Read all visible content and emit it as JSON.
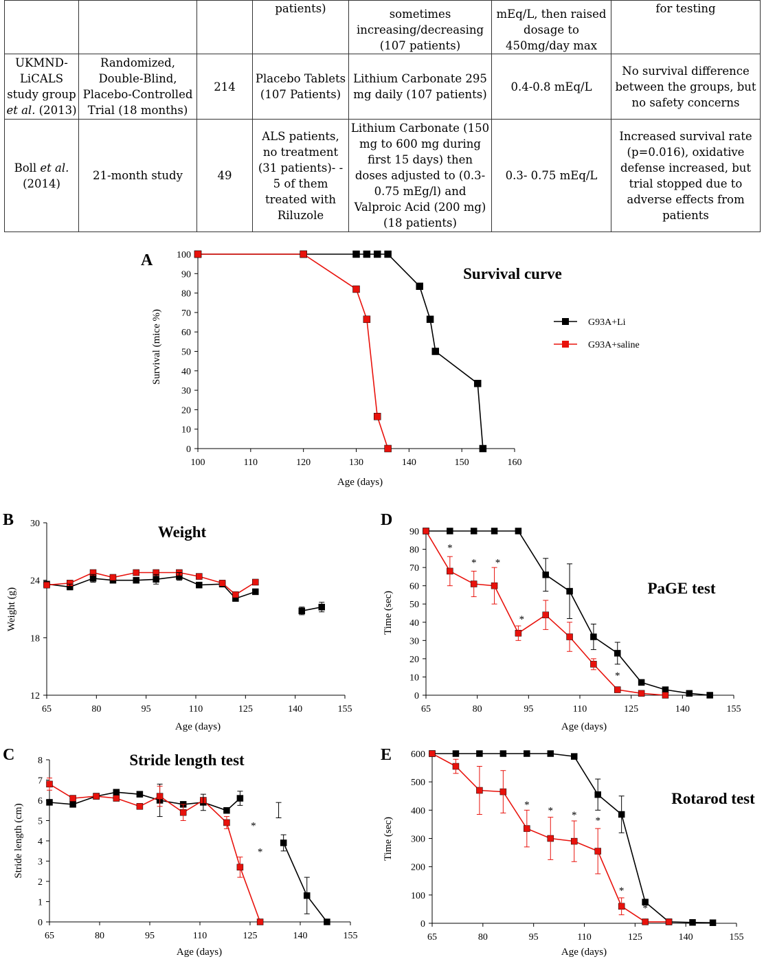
{
  "table": {
    "rows": [
      [
        "",
        "",
        "",
        "patients)",
        "sometimes increasing/decreasing (107 patients)",
        "mEq/L, then raised dosage to 450mg/day max",
        "for testing"
      ],
      [
        "UKMND-LiCALS study group et al. (2013)",
        "Randomized, Double-Blind, Placebo-Controlled Trial (18 months)",
        "214",
        "Placebo Tablets (107 Patients)",
        "Lithium Carbonate 295 mg daily (107 patients)",
        "0.4-0.8 mEq/L",
        "No survival difference between the groups, but no safety concerns"
      ],
      [
        "Boll et al. (2014)",
        "21-month study",
        "49",
        "ALS patients, no treatment (31 patients)- - 5 of them treated with Riluzole",
        "Lithium Carbonate (150 mg to 600 mg during first 15 days) then doses adjusted to (0.3-0.75 mEg/l) and Valproic Acid (200 mg) (18 patients)",
        "0.3- 0.75 mEq/L",
        "Increased survival rate (p=0.016), oxidative defense increased, but trial stopped due to adverse effects from patients"
      ]
    ],
    "cells": {
      "r1c0a": "UKMND-LiCALS study group",
      "r1c0b": "et al.",
      "r1c0c": " (2013)",
      "r2c0a": "Boll ",
      "r2c0b": "et al.",
      "r2c0c": "(2014)"
    }
  },
  "colors": {
    "li": "#000000",
    "saline": "#e8120c"
  },
  "chart_data": [
    {
      "panel": "A",
      "type": "line",
      "title": "Survival curve",
      "xlabel": "Age (days)",
      "ylabel": "Survival (mice %)",
      "xlim": [
        100,
        160
      ],
      "ylim": [
        0,
        100
      ],
      "xticks": [
        "100",
        "110",
        "120",
        "130",
        "140",
        "150",
        "160"
      ],
      "yticks": [
        "0",
        "10",
        "20",
        "30",
        "40",
        "50",
        "60",
        "70",
        "80",
        "90",
        "100"
      ],
      "legend_position": "right",
      "series": [
        {
          "name": "G93A+Li",
          "x": [
            100,
            120,
            130,
            132,
            134,
            136,
            142,
            144,
            145,
            153,
            154
          ],
          "y": [
            100,
            100,
            100,
            100,
            100,
            100,
            83.5,
            66.5,
            50,
            33.5,
            0
          ]
        },
        {
          "name": "G93A+saline",
          "x": [
            100,
            120,
            130,
            132,
            134,
            136
          ],
          "y": [
            100,
            100,
            82,
            66.5,
            16.5,
            0
          ]
        }
      ]
    },
    {
      "panel": "B",
      "type": "line",
      "title": "Weight",
      "xlabel": "Age (days)",
      "ylabel": "Weight (g)",
      "xlim": [
        65,
        155
      ],
      "ylim": [
        12,
        30
      ],
      "xticks": [
        "65",
        "80",
        "95",
        "110",
        "125",
        "140",
        "155"
      ],
      "yticks": [
        "12",
        "18",
        "24",
        "30"
      ],
      "series": [
        {
          "x": [
            65,
            72,
            79,
            85,
            92,
            98,
            105,
            111,
            118,
            122,
            128,
            135,
            142,
            148
          ],
          "y": [
            23.6,
            23.3,
            24.2,
            24.0,
            24.0,
            24.1,
            24.4,
            23.5,
            23.6,
            22.1,
            22.8,
            null,
            20.8,
            21.2
          ]
        },
        {
          "x": [
            65,
            72,
            79,
            85,
            92,
            98,
            105,
            111,
            118,
            122,
            128
          ],
          "y": [
            23.5,
            23.7,
            24.8,
            24.3,
            24.8,
            24.8,
            24.8,
            24.4,
            23.7,
            22.5,
            23.8
          ]
        }
      ]
    },
    {
      "panel": "C",
      "type": "line",
      "title": "Stride length test",
      "xlabel": "Age (days)",
      "ylabel": "Stride length (cm)",
      "xlim": [
        65,
        155
      ],
      "ylim": [
        0,
        8
      ],
      "xticks": [
        "65",
        "80",
        "95",
        "110",
        "125",
        "140",
        "155"
      ],
      "yticks": [
        "0",
        "1",
        "2",
        "3",
        "4",
        "5",
        "6",
        "7",
        "8"
      ],
      "series": [
        {
          "x": [
            65,
            72,
            79,
            85,
            92,
            98,
            105,
            111,
            118,
            122,
            128,
            135,
            142,
            148
          ],
          "y": [
            5.9,
            5.8,
            6.2,
            6.4,
            6.3,
            6.0,
            5.8,
            5.9,
            5.5,
            6.1,
            null,
            3.9,
            1.3,
            0
          ]
        },
        {
          "x": [
            65,
            72,
            79,
            85,
            92,
            98,
            105,
            111,
            118,
            122,
            128
          ],
          "y": [
            6.8,
            6.1,
            6.2,
            6.1,
            5.7,
            6.2,
            5.4,
            6.0,
            4.9,
            2.7,
            0
          ]
        }
      ],
      "annotations": [
        "*",
        "*"
      ]
    },
    {
      "panel": "D",
      "type": "line",
      "title": "PaGE test",
      "xlabel": "Age (days)",
      "ylabel": "Time (sec)",
      "xlim": [
        65,
        155
      ],
      "ylim": [
        0,
        90
      ],
      "xticks": [
        "65",
        "80",
        "95",
        "110",
        "125",
        "140",
        "155"
      ],
      "yticks": [
        "0",
        "10",
        "20",
        "30",
        "40",
        "50",
        "60",
        "70",
        "80",
        "90"
      ],
      "series": [
        {
          "x": [
            65,
            72,
            79,
            85,
            92,
            100,
            107,
            114,
            121,
            128,
            135,
            142,
            148
          ],
          "y": [
            90,
            90,
            90,
            90,
            90,
            66,
            57,
            32,
            23,
            7,
            3,
            1,
            0
          ]
        },
        {
          "x": [
            65,
            72,
            79,
            85,
            92,
            100,
            107,
            114,
            121,
            128,
            135
          ],
          "y": [
            90,
            68,
            61,
            60,
            34,
            44,
            32,
            17,
            3,
            1,
            0
          ]
        }
      ],
      "annotations": [
        "*",
        "*",
        "*",
        "*",
        "*",
        "*"
      ]
    },
    {
      "panel": "E",
      "type": "line",
      "title": "Rotarod test",
      "xlabel": "Age (days)",
      "ylabel": "Time (sec)",
      "xlim": [
        65,
        155
      ],
      "ylim": [
        0,
        600
      ],
      "xticks": [
        "65",
        "80",
        "95",
        "110",
        "125",
        "140",
        "155"
      ],
      "yticks": [
        "0",
        "100",
        "200",
        "300",
        "400",
        "500",
        "600"
      ],
      "series": [
        {
          "x": [
            65,
            72,
            79,
            86,
            93,
            100,
            107,
            114,
            121,
            128,
            135,
            142,
            148
          ],
          "y": [
            600,
            600,
            600,
            600,
            600,
            600,
            590,
            455,
            385,
            75,
            5,
            3,
            2
          ]
        },
        {
          "x": [
            65,
            72,
            79,
            86,
            93,
            100,
            107,
            114,
            121,
            128,
            135
          ],
          "y": [
            600,
            555,
            470,
            465,
            335,
            300,
            290,
            255,
            60,
            5,
            5
          ]
        }
      ],
      "annotations": [
        "*",
        "*",
        "*",
        "*",
        "*",
        "*"
      ]
    }
  ]
}
